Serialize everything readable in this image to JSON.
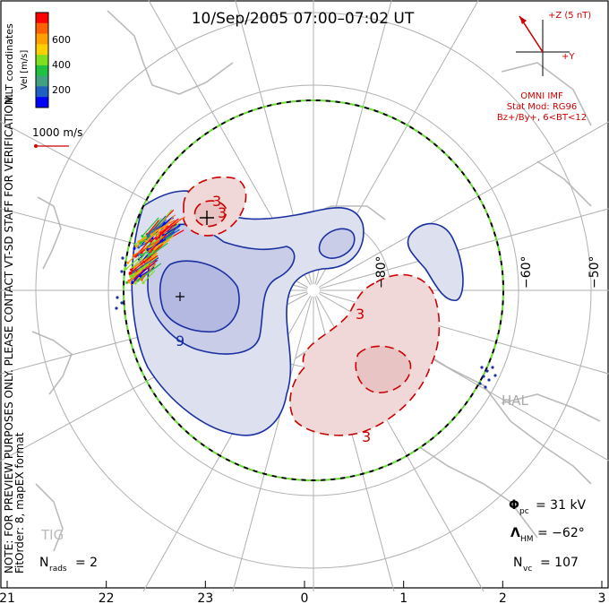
{
  "title": "10/Sep/2005 07:00–07:02 UT",
  "side_note_1": "NOTE: FOR PREVIEW PURPOSES ONLY. PLEASE CONTACT VT-SD STAFF FOR VERIFICATION.",
  "side_note_2": "FitOrder: 8, mapEX format",
  "coords_label": "MLT coordinates",
  "colorbar": {
    "label": "Vel [m/s]",
    "ticks": [
      "600",
      "400",
      "200"
    ],
    "colors": [
      "#ff0000",
      "#ff6000",
      "#ffa000",
      "#ffd000",
      "#80e020",
      "#20c040",
      "#40a080",
      "#2060c0",
      "#0000ff"
    ]
  },
  "ref_vector_label": "1000 m/s",
  "imf": {
    "z_label": "+Z (5 nT)",
    "y_label": "+Y",
    "source": "OMNI IMF",
    "stat_mod": "Stat Mod: RG96",
    "condition": "Bz+/By+, 6<BT<12"
  },
  "stats": {
    "phi_sym": "Φ",
    "phi_sub": "pc",
    "phi_val": "= 31 kV",
    "lambda_sym": "Λ",
    "lambda_sub": "HM",
    "lambda_val": "= −62°",
    "nvc_sym": "N",
    "nvc_sub": "vc",
    "nvc_val": "= 107",
    "nrads_sym": "N",
    "nrads_sub": "rads",
    "nrads_val": "= 2"
  },
  "stations": [
    "HAL",
    "TIG"
  ],
  "mlt_ticks": [
    "21",
    "22",
    "23",
    "0",
    "1",
    "2",
    "3"
  ],
  "lat_ticks": [
    "−80°",
    "−60°",
    "−50°"
  ],
  "contour_labels": [
    "3",
    "3",
    "3",
    "3",
    "9"
  ],
  "chart_data": {
    "type": "polar convection map",
    "title": "10/Sep/2005 07:00–07:02 UT",
    "coordinate_system": "MLT coordinates",
    "hemisphere": "south",
    "x_axis_ticks_mlt": [
      21,
      22,
      23,
      0,
      1,
      2,
      3
    ],
    "latitude_ticks_deg": [
      -80,
      -60,
      -50
    ],
    "heppner_maynard_boundary_deg": -62,
    "cross_polar_cap_potential_kV": 31,
    "num_vectors": 107,
    "num_radars": 2,
    "velocity_scale_ms": [
      0,
      800
    ],
    "reference_vector_ms": 1000,
    "contour_labels_kV": [
      3,
      3,
      3,
      3,
      9
    ],
    "potential_extrema": [
      {
        "sign": "+",
        "mlt": 22.7,
        "lat_deg": -75
      },
      {
        "sign": "-",
        "mlt": 22.2,
        "lat_deg": -70
      }
    ],
    "stations": [
      "HAL",
      "TIG"
    ],
    "imf_model": "RG96",
    "imf_condition": "Bz+/By+, 6<BT<12"
  }
}
